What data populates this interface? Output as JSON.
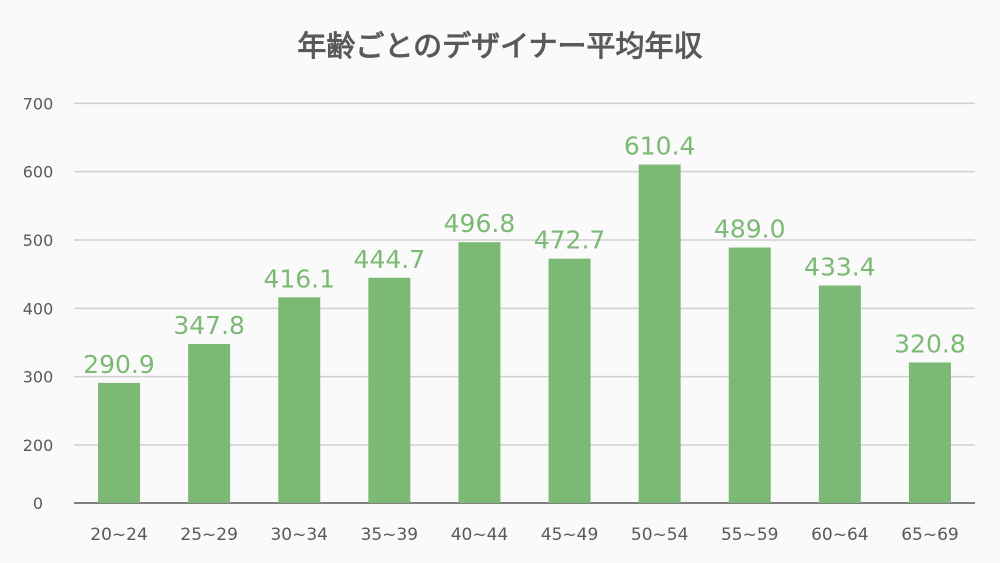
{
  "chart_data": {
    "type": "bar",
    "title": "年齢ごとのデザイナー平均年収",
    "xlabel": "",
    "ylabel": "",
    "categories": [
      "20~24",
      "25~29",
      "30~34",
      "35~39",
      "40~44",
      "45~49",
      "50~54",
      "55~59",
      "60~64",
      "65~69"
    ],
    "values": [
      290.9,
      347.8,
      416.1,
      444.7,
      496.8,
      472.7,
      610.4,
      489.0,
      433.4,
      320.8
    ],
    "value_labels": [
      "290.9",
      "347.8",
      "416.1",
      "444.7",
      "496.8",
      "472.7",
      "610.4",
      "489.0",
      "433.4",
      "320.8"
    ],
    "y_ticks": [
      0,
      200,
      300,
      400,
      500,
      600,
      700
    ],
    "ylim": [
      0,
      700
    ],
    "grid": true,
    "legend": "none",
    "colors": {
      "bar": "#7cb974",
      "label": "#7cb974",
      "text": "#595959",
      "grid": "#d0d0d0",
      "axis": "#7f7f7f"
    }
  }
}
